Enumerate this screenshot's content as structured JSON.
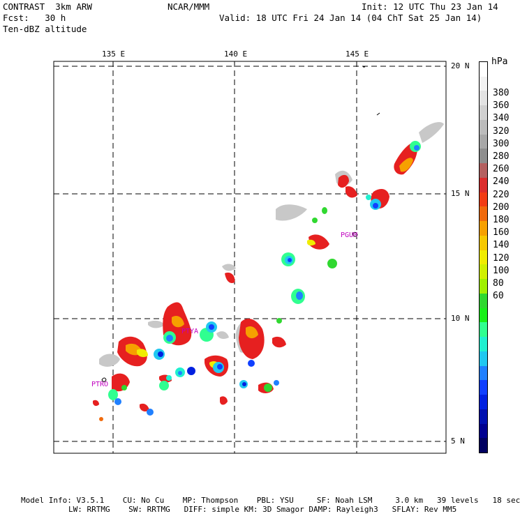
{
  "header": {
    "line1_left": "CONTRAST  3km ARW",
    "line1_center": "NCAR/MMM",
    "line1_right": "Init: 12 UTC Thu 23 Jan 14",
    "line2_left": "Fcst:   30 h",
    "line2_right": "Valid: 18 UTC Fri 24 Jan 14 (04 ChT Sat 25 Jan 14)",
    "line3_left": "Ten-dBZ altitude"
  },
  "map": {
    "lon_labels": [
      "135 E",
      "140 E",
      "145 E"
    ],
    "lat_labels": [
      "20 N",
      "15 N",
      "10 N",
      "5 N"
    ],
    "stations": [
      "PGUM",
      "PTYA",
      "PTRO"
    ]
  },
  "legend": {
    "unit": "hPa",
    "labels": [
      "380",
      "360",
      "340",
      "320",
      "300",
      "280",
      "260",
      "240",
      "220",
      "200",
      "180",
      "160",
      "140",
      "120",
      "100",
      "80",
      "60"
    ],
    "colors": [
      "#ffffff",
      "#f2f2f2",
      "#e2e2e2",
      "#d0d0d0",
      "#bcbcbc",
      "#a8a8a8",
      "#8e8e8e",
      "#b46060",
      "#dc2d2d",
      "#f23c14",
      "#f06a0c",
      "#f6a000",
      "#f6c800",
      "#f0ec00",
      "#d0f000",
      "#a0f000",
      "#30d830",
      "#18f018",
      "#30ff90",
      "#20f0d0",
      "#20c8f0",
      "#2080ff",
      "#1040ff",
      "#0020e0",
      "#0010b0",
      "#000090",
      "#000060"
    ]
  },
  "footer": {
    "line1": "Model Info: V3.5.1    CU: No Cu    MP: Thompson    PBL: YSU     SF: Noah LSM     3.0 km   39 levels   18 sec",
    "line2": "LW: RRTMG    SW: RRTMG   DIFF: simple KM: 3D Smagor DAMP: Rayleigh3   SFLAY: Rev MM5"
  }
}
